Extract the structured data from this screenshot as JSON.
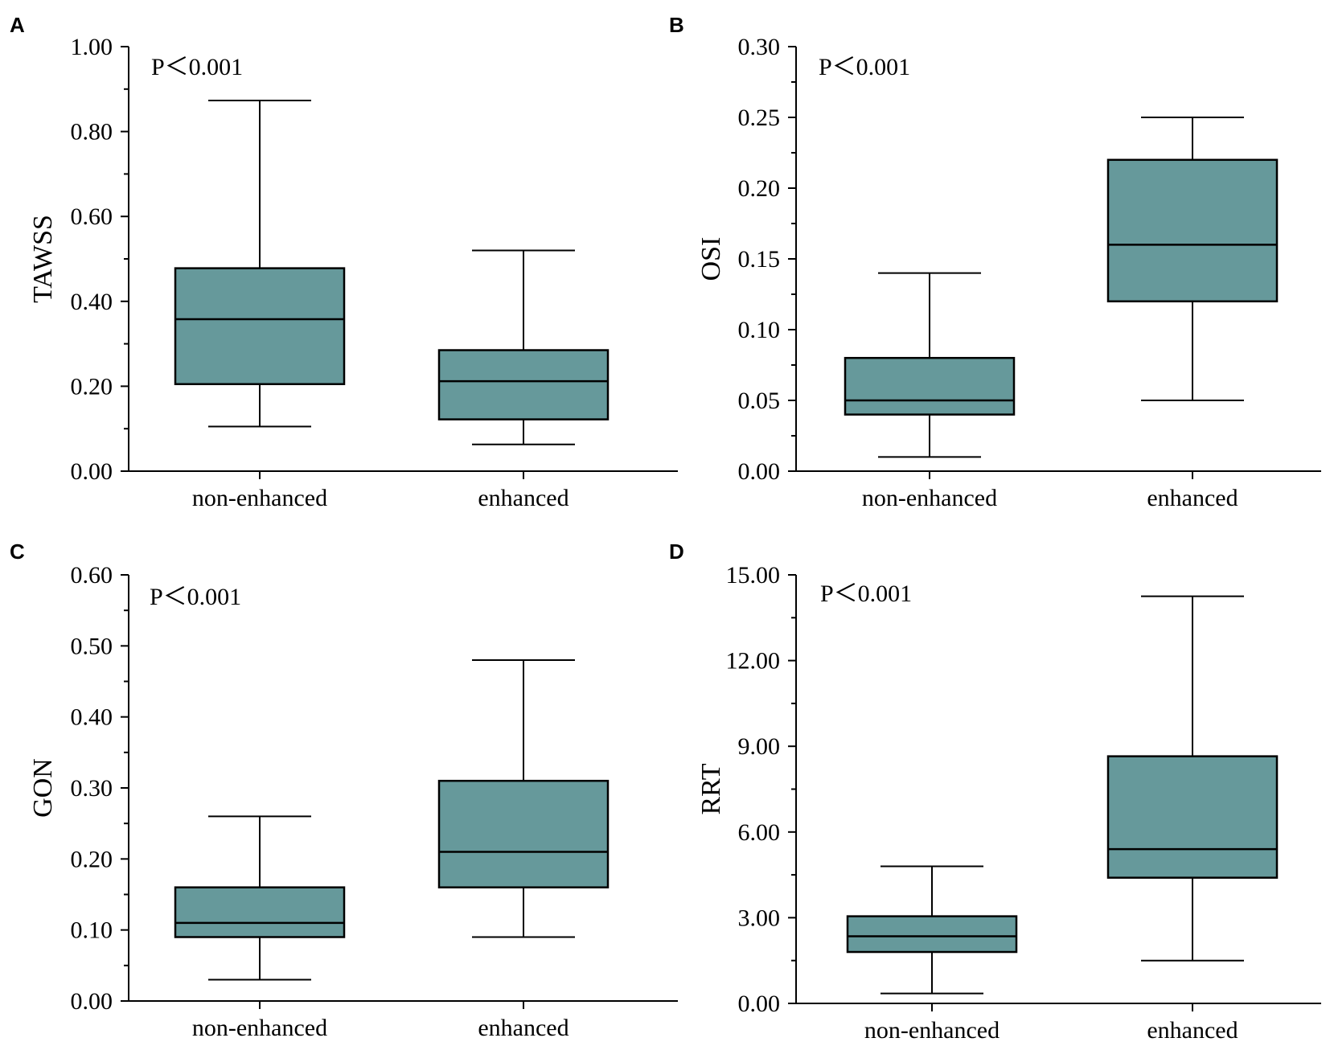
{
  "chart_data": [
    {
      "type": "box",
      "panel": "A",
      "ylabel": "TAWSS",
      "annotation": "P＜0.001",
      "ylim": [
        0,
        1.0
      ],
      "yticks": [
        0,
        0.2,
        0.4,
        0.6,
        0.8,
        1.0
      ],
      "ytick_labels": [
        "0.00",
        "0.20",
        "0.40",
        "0.60",
        "0.80",
        "1.00"
      ],
      "categories": [
        "non-enhanced",
        "enhanced"
      ],
      "boxes": [
        {
          "min": 0.105,
          "q1": 0.205,
          "median": 0.358,
          "q3": 0.478,
          "max": 0.873
        },
        {
          "min": 0.063,
          "q1": 0.122,
          "median": 0.212,
          "q3": 0.285,
          "max": 0.52
        }
      ]
    },
    {
      "type": "box",
      "panel": "B",
      "ylabel": "OSI",
      "annotation": "P＜0.001",
      "ylim": [
        0,
        0.3
      ],
      "yticks": [
        0,
        0.05,
        0.1,
        0.15,
        0.2,
        0.25,
        0.3
      ],
      "ytick_labels": [
        "0.00",
        "0.05",
        "0.10",
        "0.15",
        "0.20",
        "0.25",
        "0.30"
      ],
      "categories": [
        "non-enhanced",
        "enhanced"
      ],
      "boxes": [
        {
          "min": 0.01,
          "q1": 0.04,
          "median": 0.05,
          "q3": 0.08,
          "max": 0.14
        },
        {
          "min": 0.05,
          "q1": 0.12,
          "median": 0.16,
          "q3": 0.22,
          "max": 0.25
        }
      ]
    },
    {
      "type": "box",
      "panel": "C",
      "ylabel": "GON",
      "annotation": "P＜0.001",
      "ylim": [
        0,
        0.6
      ],
      "yticks": [
        0,
        0.1,
        0.2,
        0.3,
        0.4,
        0.5,
        0.6
      ],
      "ytick_labels": [
        "0.00",
        "0.10",
        "0.20",
        "0.30",
        "0.40",
        "0.50",
        "0.60"
      ],
      "categories": [
        "non-enhanced",
        "enhanced"
      ],
      "boxes": [
        {
          "min": 0.03,
          "q1": 0.09,
          "median": 0.11,
          "q3": 0.16,
          "max": 0.26
        },
        {
          "min": 0.09,
          "q1": 0.16,
          "median": 0.21,
          "q3": 0.31,
          "max": 0.48
        }
      ]
    },
    {
      "type": "box",
      "panel": "D",
      "ylabel": "RRT",
      "annotation": "P＜0.001",
      "ylim": [
        0,
        15
      ],
      "yticks": [
        0,
        3,
        6,
        9,
        12,
        15
      ],
      "ytick_labels": [
        "0.00",
        "3.00",
        "6.00",
        "9.00",
        "12.00",
        "15.00"
      ],
      "categories": [
        "non-enhanced",
        "enhanced"
      ],
      "boxes": [
        {
          "min": 0.35,
          "q1": 1.8,
          "median": 2.35,
          "q3": 3.05,
          "max": 4.8
        },
        {
          "min": 1.5,
          "q1": 4.4,
          "median": 5.4,
          "q3": 8.65,
          "max": 14.25
        }
      ]
    }
  ],
  "style": {
    "box_fill": "#66999b",
    "line_color": "#000000"
  }
}
